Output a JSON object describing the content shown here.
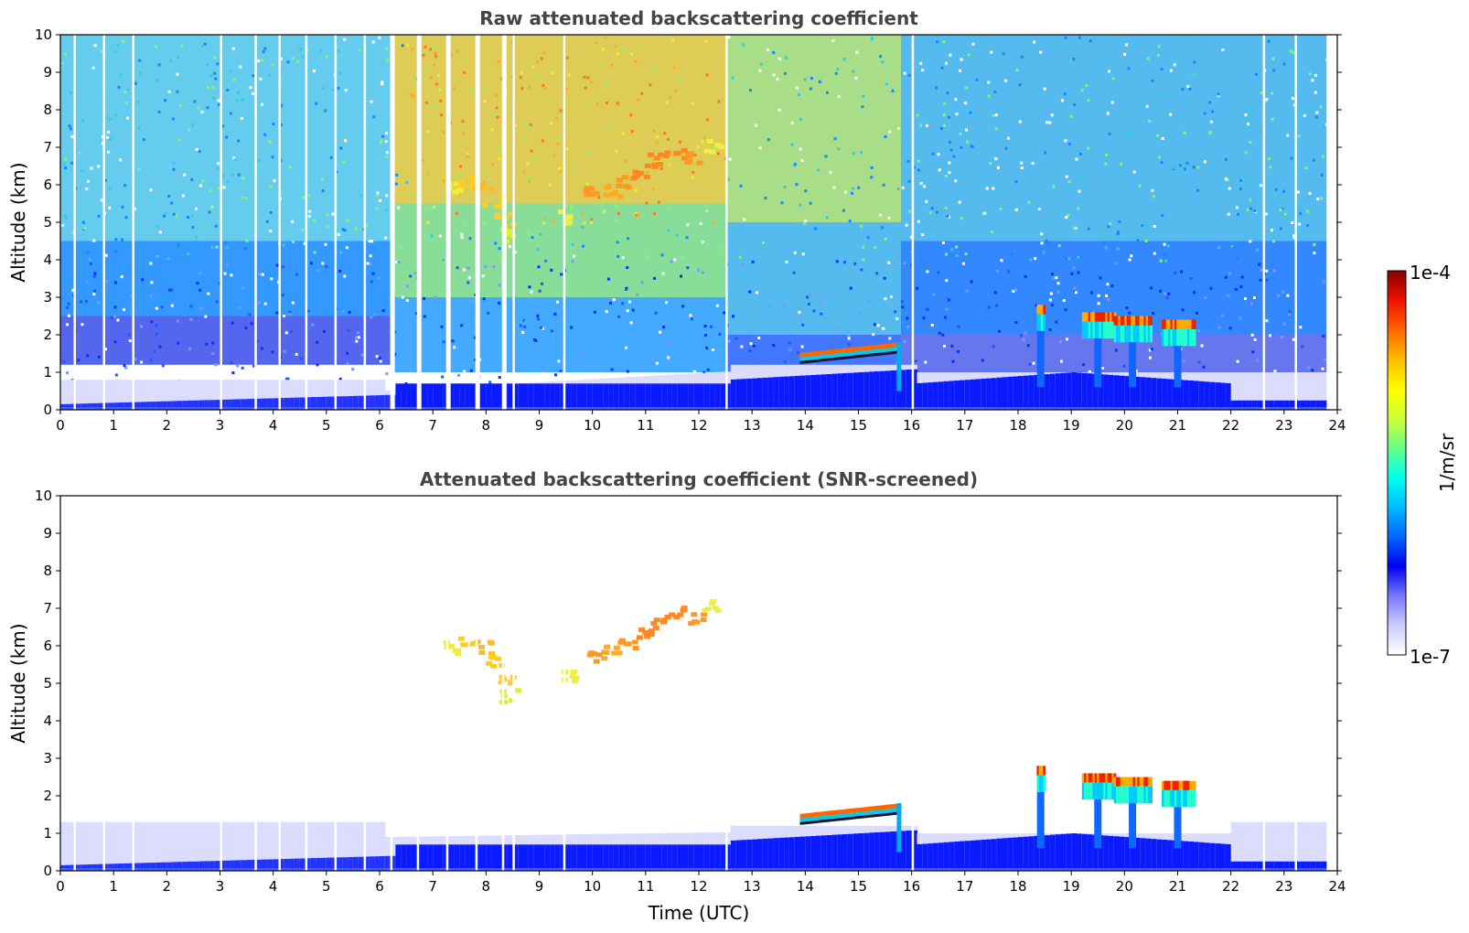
{
  "chart_data": [
    {
      "type": "heatmap",
      "title": "Raw attenuated backscattering coefficient",
      "xlabel": "",
      "ylabel": "Altitude (km)",
      "xlim": [
        0,
        24
      ],
      "ylim": [
        0,
        10
      ],
      "x_ticks": [
        "0",
        "1",
        "2",
        "3",
        "4",
        "5",
        "6",
        "7",
        "8",
        "9",
        "10",
        "11",
        "12",
        "13",
        "14",
        "15",
        "16",
        "17",
        "18",
        "19",
        "20",
        "21",
        "22",
        "23",
        "24"
      ],
      "y_ticks": [
        "0",
        "1",
        "2",
        "3",
        "4",
        "5",
        "6",
        "7",
        "8",
        "9",
        "10"
      ],
      "data_coverage_hours": [
        0,
        23.8
      ],
      "features": [
        {
          "kind": "boundary_layer",
          "x": [
            0,
            23.8
          ],
          "top_km": [
            0.35,
            1.2
          ]
        },
        {
          "kind": "cirrus_layer",
          "x": [
            7.2,
            12.3
          ],
          "alt_km": [
            5.0,
            7.0
          ]
        },
        {
          "kind": "cloud_layer",
          "x": [
            13.9,
            15.8
          ],
          "alt_km": [
            1.3,
            1.9
          ]
        },
        {
          "kind": "cloud",
          "x": [
            18.3,
            18.5
          ],
          "alt_km": [
            1.2,
            2.8
          ]
        },
        {
          "kind": "cloud_layer",
          "x": [
            19.2,
            21.1
          ],
          "alt_km": [
            1.5,
            2.6
          ]
        }
      ]
    },
    {
      "type": "heatmap",
      "title": "Attenuated backscattering coefficient (SNR-screened)",
      "xlabel": "Time (UTC)",
      "ylabel": "Altitude (km)",
      "xlim": [
        0,
        24
      ],
      "ylim": [
        0,
        10
      ],
      "x_ticks": [
        "0",
        "1",
        "2",
        "3",
        "4",
        "5",
        "6",
        "7",
        "8",
        "9",
        "10",
        "11",
        "12",
        "13",
        "14",
        "15",
        "16",
        "17",
        "18",
        "19",
        "20",
        "21",
        "22",
        "23",
        "24"
      ],
      "y_ticks": [
        "0",
        "1",
        "2",
        "3",
        "4",
        "5",
        "6",
        "7",
        "8",
        "9",
        "10"
      ],
      "data_coverage_hours": [
        0,
        23.8
      ],
      "features": [
        {
          "kind": "boundary_layer",
          "x": [
            0,
            23.8
          ],
          "top_km": [
            0.35,
            1.3
          ]
        },
        {
          "kind": "cirrus_layer",
          "x": [
            7.3,
            12.3
          ],
          "alt_km": [
            4.6,
            7.3
          ]
        },
        {
          "kind": "cloud_layer",
          "x": [
            13.9,
            15.9
          ],
          "alt_km": [
            1.3,
            2.2
          ]
        },
        {
          "kind": "cloud",
          "x": [
            18.3,
            18.5
          ],
          "alt_km": [
            1.2,
            2.8
          ]
        },
        {
          "kind": "cloud_layer",
          "x": [
            19.2,
            21.4
          ],
          "alt_km": [
            1.5,
            2.6
          ]
        }
      ]
    }
  ],
  "colorbar": {
    "label": "1/m/sr",
    "max_label": "1e-4",
    "min_label": "1e-7",
    "scale": "log",
    "colormap": [
      "#ffffff",
      "#ccccff",
      "#7777ff",
      "#0000ee",
      "#0066ff",
      "#00bbff",
      "#00ffee",
      "#66ff88",
      "#ccff33",
      "#ffff00",
      "#ffbb00",
      "#ff6600",
      "#ee1100",
      "#880000"
    ]
  }
}
